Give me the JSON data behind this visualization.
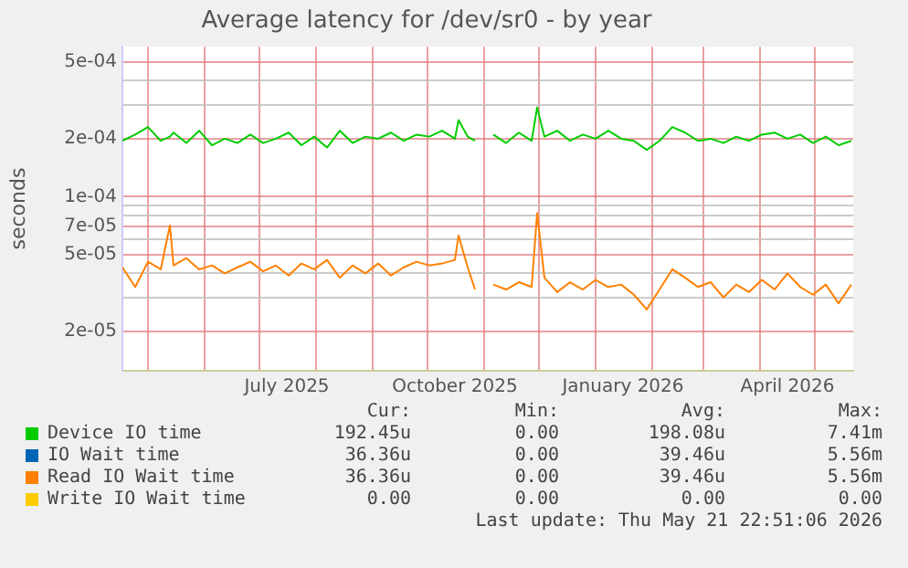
{
  "chart_data": {
    "type": "line",
    "title": "Average latency for /dev/sr0 - by year",
    "ylabel": "seconds",
    "log": "y",
    "grid": true,
    "legend": "bottom",
    "marker": "none",
    "line_style": "solid",
    "xlim": [
      "2025-04-17",
      "2026-05-22"
    ],
    "xticks": [
      {
        "value": "2025-05-01",
        "label": null
      },
      {
        "value": "2025-06-01",
        "label": null
      },
      {
        "value": "2025-07-01",
        "label": null
      },
      {
        "value": "2025-07-16",
        "label": "July 2025"
      },
      {
        "value": "2025-08-01",
        "label": null
      },
      {
        "value": "2025-09-01",
        "label": null
      },
      {
        "value": "2025-10-01",
        "label": null
      },
      {
        "value": "2025-10-16",
        "label": "October 2025"
      },
      {
        "value": "2025-11-01",
        "label": null
      },
      {
        "value": "2025-12-01",
        "label": null
      },
      {
        "value": "2026-01-01",
        "label": null
      },
      {
        "value": "2026-01-16",
        "label": "January 2026"
      },
      {
        "value": "2026-02-01",
        "label": null
      },
      {
        "value": "2026-03-01",
        "label": null
      },
      {
        "value": "2026-04-01",
        "label": null
      },
      {
        "value": "2026-04-16",
        "label": "April 2026"
      },
      {
        "value": "2026-05-01",
        "label": null
      }
    ],
    "ylim": [
      1.25e-05,
      0.0006
    ],
    "yticks": [
      {
        "value": 2e-05,
        "label": "2e-05"
      },
      {
        "value": 3e-05,
        "label": null
      },
      {
        "value": 4e-05,
        "label": null
      },
      {
        "value": 5e-05,
        "label": "5e-05"
      },
      {
        "value": 6e-05,
        "label": null
      },
      {
        "value": 7e-05,
        "label": "7e-05"
      },
      {
        "value": 8e-05,
        "label": null
      },
      {
        "value": 9e-05,
        "label": null
      },
      {
        "value": 0.0001,
        "label": "1e-04"
      },
      {
        "value": 0.0002,
        "label": "2e-04"
      },
      {
        "value": 0.0003,
        "label": null
      },
      {
        "value": 0.0004,
        "label": null
      },
      {
        "value": 0.0005,
        "label": "5e-04"
      }
    ],
    "x": [
      "2025-04-17",
      "2025-04-24",
      "2025-05-01",
      "2025-05-08",
      "2025-05-13",
      "2025-05-15",
      "2025-05-22",
      "2025-05-29",
      "2025-06-05",
      "2025-06-12",
      "2025-06-19",
      "2025-06-26",
      "2025-07-03",
      "2025-07-10",
      "2025-07-17",
      "2025-07-24",
      "2025-07-31",
      "2025-08-07",
      "2025-08-14",
      "2025-08-21",
      "2025-08-28",
      "2025-09-04",
      "2025-09-11",
      "2025-09-18",
      "2025-09-25",
      "2025-10-02",
      "2025-10-09",
      "2025-10-16",
      "2025-10-18",
      "2025-10-23",
      "2025-10-27",
      "2025-10-30",
      "2025-11-06",
      "2025-11-13",
      "2025-11-20",
      "2025-11-27",
      "2025-11-30",
      "2025-12-04",
      "2025-12-11",
      "2025-12-18",
      "2025-12-25",
      "2026-01-01",
      "2026-01-08",
      "2026-01-15",
      "2026-01-22",
      "2026-01-29",
      "2026-02-05",
      "2026-02-12",
      "2026-02-19",
      "2026-02-26",
      "2026-03-05",
      "2026-03-12",
      "2026-03-19",
      "2026-03-26",
      "2026-04-02",
      "2026-04-09",
      "2026-04-16",
      "2026-04-23",
      "2026-04-30",
      "2026-05-07",
      "2026-05-14",
      "2026-05-21"
    ],
    "series": [
      {
        "name": "Device IO time",
        "color": "#00cc00",
        "values": [
          0.000195,
          0.00021,
          0.00023,
          0.000195,
          0.000205,
          0.000215,
          0.00019,
          0.00022,
          0.000185,
          0.0002,
          0.00019,
          0.00021,
          0.00019,
          0.0002,
          0.000215,
          0.000185,
          0.000205,
          0.00018,
          0.00022,
          0.00019,
          0.000205,
          0.0002,
          0.000215,
          0.000195,
          0.00021,
          0.000205,
          0.00022,
          0.0002,
          0.00025,
          0.000205,
          0.000195,
          null,
          0.00021,
          0.00019,
          0.000215,
          0.000195,
          0.00029,
          0.000205,
          0.00022,
          0.000195,
          0.00021,
          0.0002,
          0.00022,
          0.0002,
          0.000195,
          0.000175,
          0.000195,
          0.00023,
          0.000215,
          0.000195,
          0.0002,
          0.00019,
          0.000205,
          0.000195,
          0.00021,
          0.000215,
          0.0002,
          0.00021,
          0.00019,
          0.000205,
          0.000185,
          0.000195
        ]
      },
      {
        "name": "IO Wait time",
        "color": "#0066b3",
        "values": [
          null,
          null,
          null,
          null,
          null,
          null,
          null,
          null,
          null,
          null,
          null,
          null,
          null,
          null,
          null,
          null,
          null,
          null,
          null,
          null,
          null,
          null,
          null,
          null,
          null,
          null,
          null,
          null,
          null,
          null,
          null,
          null,
          null,
          null,
          null,
          null,
          null,
          null,
          null,
          null,
          null,
          null,
          null,
          null,
          null,
          null,
          null,
          null,
          null,
          null,
          null,
          null,
          null,
          null,
          null,
          null,
          null,
          null,
          null,
          null,
          null,
          null
        ]
      },
      {
        "name": "Read IO Wait time",
        "color": "#ff8000",
        "values": [
          4.3e-05,
          3.4e-05,
          4.6e-05,
          4.2e-05,
          7.1e-05,
          4.4e-05,
          4.8e-05,
          4.2e-05,
          4.4e-05,
          4e-05,
          4.3e-05,
          4.6e-05,
          4.1e-05,
          4.4e-05,
          3.9e-05,
          4.5e-05,
          4.2e-05,
          4.7e-05,
          3.8e-05,
          4.4e-05,
          4e-05,
          4.5e-05,
          3.9e-05,
          4.3e-05,
          4.6e-05,
          4.4e-05,
          4.5e-05,
          4.7e-05,
          6.3e-05,
          4.3e-05,
          3.3e-05,
          null,
          3.5e-05,
          3.3e-05,
          3.6e-05,
          3.4e-05,
          8.2e-05,
          3.8e-05,
          3.2e-05,
          3.6e-05,
          3.3e-05,
          3.7e-05,
          3.4e-05,
          3.5e-05,
          3.1e-05,
          2.6e-05,
          3.3e-05,
          4.2e-05,
          3.8e-05,
          3.4e-05,
          3.6e-05,
          3e-05,
          3.5e-05,
          3.2e-05,
          3.7e-05,
          3.3e-05,
          4e-05,
          3.4e-05,
          3.1e-05,
          3.5e-05,
          2.8e-05,
          3.5e-05
        ]
      },
      {
        "name": "Write IO Wait time",
        "color": "#ffcc00",
        "values": [
          null,
          null,
          null,
          null,
          null,
          null,
          null,
          null,
          null,
          null,
          null,
          null,
          null,
          null,
          null,
          null,
          null,
          null,
          null,
          null,
          null,
          null,
          null,
          null,
          null,
          null,
          null,
          null,
          null,
          null,
          null,
          null,
          null,
          null,
          null,
          null,
          null,
          null,
          null,
          null,
          null,
          null,
          null,
          null,
          null,
          null,
          null,
          null,
          null,
          null,
          null,
          null,
          null,
          null,
          null,
          null,
          null,
          null,
          null,
          null,
          null,
          null
        ]
      }
    ],
    "annotations": [
      "Cur:",
      "Min:",
      "Avg:",
      "Max:",
      "192.45u",
      "0.00",
      "198.08u",
      "7.41m",
      "36.36u",
      "0.00",
      "39.46u",
      "5.56m",
      "36.36u",
      "0.00",
      "39.46u",
      "5.56m",
      "0.00",
      "0.00",
      "0.00",
      "0.00",
      "Last update: Thu May 21 22:51:06 2026"
    ]
  }
}
